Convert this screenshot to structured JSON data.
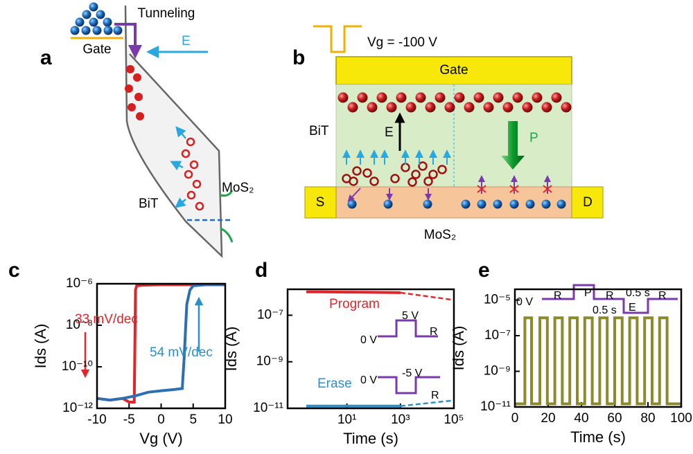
{
  "panel_labels": [
    "a",
    "b",
    "c",
    "d",
    "e"
  ],
  "diagram_a": {
    "gate": "Gate",
    "tunneling": "Tunneling",
    "field": "E",
    "ferro": "BiT",
    "channel": "MoS₂"
  },
  "diagram_b": {
    "voltage": "Vg = -100 V",
    "gate": "Gate",
    "ferro": "BiT",
    "field": "E",
    "polarization": "P",
    "source": "S",
    "drain": "D",
    "channel": "MoS₂"
  },
  "chart_data": [
    {
      "type": "line",
      "xlabel": "Vg (V)",
      "ylabel": "Ids (A)",
      "xlim": [
        -10,
        10
      ],
      "ylim": [
        1e-12,
        1e-06
      ],
      "ylog": true,
      "xticks": [
        -10,
        -5,
        0,
        5,
        10
      ],
      "yticks": [
        {
          "value": 1e-12,
          "label": "10⁻¹²"
        },
        {
          "value": 1e-10,
          "label": "10⁻¹⁰"
        },
        {
          "value": 1e-08,
          "label": "10⁻⁸"
        },
        {
          "value": 1e-06,
          "label": "10⁻⁶"
        }
      ],
      "annotations": [
        "33 mV/dec",
        "54 mV/dec"
      ],
      "series": [
        {
          "color": "#e0252b",
          "x": [
            -10,
            -8,
            -6,
            -5,
            -4.2,
            -4,
            -3.8,
            -3,
            0,
            5,
            10
          ],
          "values": [
            3e-12,
            2.5e-12,
            3e-12,
            2e-12,
            2e-12,
            5e-07,
            8e-07,
            8.5e-07,
            9e-07,
            9e-07,
            9e-07
          ]
        },
        {
          "color": "#2d6fb0",
          "x": [
            -10,
            -8,
            -6,
            -4,
            -2,
            0,
            2,
            3.3,
            3.6,
            4,
            4.5,
            5,
            7,
            10
          ],
          "values": [
            3e-12,
            2.5e-12,
            3e-12,
            4e-12,
            6e-12,
            7e-12,
            8e-12,
            9e-12,
            3e-10,
            1e-07,
            5e-07,
            8e-07,
            9e-07,
            9e-07
          ]
        }
      ]
    },
    {
      "type": "line",
      "xlabel": "Time (s)",
      "ylabel": "Ids (A)",
      "xlog": true,
      "ylog": true,
      "xlim": [
        0.06,
        100000
      ],
      "ylim": [
        1e-11,
        1.3e-06
      ],
      "xticks": [
        {
          "value": 10,
          "label": "10¹"
        },
        {
          "value": 1000,
          "label": "10³"
        },
        {
          "value": 100000,
          "label": "10⁵"
        }
      ],
      "yticks": [
        {
          "value": 1e-11,
          "label": "10⁻¹¹"
        },
        {
          "value": 1e-09,
          "label": "10⁻⁹"
        },
        {
          "value": 1e-07,
          "label": "10⁻⁷"
        }
      ],
      "annotations": [
        "0 V",
        "5 V",
        "R",
        "0 V",
        "-5 V",
        "R"
      ],
      "series": [
        {
          "name": "Program",
          "color": "#e0252b",
          "x": [
            0.3,
            1,
            10,
            100,
            1000
          ],
          "values": [
            1e-06,
            1e-06,
            9.8e-07,
            9.6e-07,
            9.3e-07
          ],
          "fit_x": [
            1000,
            100000
          ],
          "fit_values": [
            9.3e-07,
            4.5e-07
          ]
        },
        {
          "name": "Erase",
          "color": "#2d8fc8",
          "x": [
            0.3,
            1,
            10,
            100,
            1000
          ],
          "values": [
            1.25e-11,
            1.25e-11,
            1.25e-11,
            1.25e-11,
            1.25e-11
          ],
          "fit_x": [
            1000,
            100000
          ],
          "fit_values": [
            1.25e-11,
            2.2e-11
          ]
        }
      ]
    },
    {
      "type": "line",
      "xlabel": "Time (s)",
      "ylabel": "Ids (A)",
      "ylog": true,
      "xlim": [
        0,
        100
      ],
      "ylim": [
        1e-11,
        4e-05
      ],
      "xticks": [
        0,
        20,
        40,
        60,
        80,
        100
      ],
      "yticks": [
        {
          "value": 1e-11,
          "label": "10⁻¹¹"
        },
        {
          "value": 1e-09,
          "label": "10⁻⁹"
        },
        {
          "value": 1e-07,
          "label": "10⁻⁷"
        },
        {
          "value": 1e-05,
          "label": "10⁻⁵"
        }
      ],
      "annotations": [
        "0 V",
        "R",
        "P",
        "0.5 s",
        "R",
        "0.5 s",
        "E",
        "R"
      ],
      "series": [
        {
          "color": "#8c8a2c",
          "x": [
            0,
            6,
            6,
            10,
            10,
            15,
            15,
            19.5,
            19.5,
            24,
            24,
            28.5,
            28.5,
            33,
            33,
            37.5,
            37.5,
            42,
            42,
            46.5,
            46.5,
            51,
            51,
            55.5,
            55.5,
            60,
            60,
            64.5,
            64.5,
            69,
            69,
            73.5,
            73.5,
            78,
            78,
            82.5,
            82.5,
            87,
            87,
            91.5,
            91.5,
            100
          ],
          "values": [
            1.5e-11,
            1.5e-11,
            1e-06,
            1e-06,
            1.5e-11,
            1.5e-11,
            1e-06,
            1e-06,
            1.5e-11,
            1.5e-11,
            1e-06,
            1e-06,
            1.5e-11,
            1.5e-11,
            1e-06,
            1e-06,
            1.5e-11,
            1.5e-11,
            1e-06,
            1e-06,
            1.5e-11,
            1.5e-11,
            1e-06,
            1e-06,
            1.5e-11,
            1.5e-11,
            1e-06,
            1e-06,
            1.5e-11,
            1.5e-11,
            1e-06,
            1e-06,
            1.5e-11,
            1.5e-11,
            1e-06,
            1e-06,
            1.5e-11,
            1.5e-11,
            1e-06,
            1e-06,
            1.5e-11,
            1.5e-11
          ]
        }
      ]
    }
  ]
}
